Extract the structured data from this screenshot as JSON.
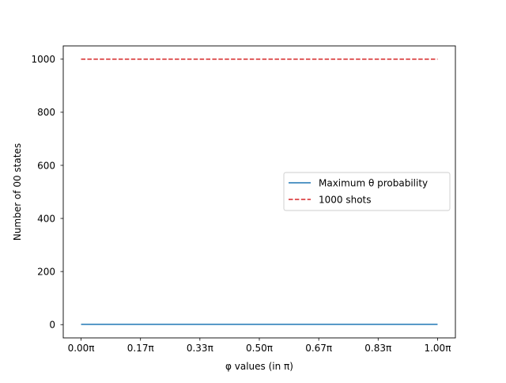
{
  "chart_data": {
    "type": "line",
    "title": "",
    "xlabel": "φ values (in π)",
    "ylabel": "Number of 00 states",
    "xlim": [
      -0.05,
      1.05
    ],
    "ylim": [
      -50,
      1050
    ],
    "x_ticks": [
      0.0,
      0.1667,
      0.3333,
      0.5,
      0.6667,
      0.8333,
      1.0
    ],
    "x_tick_labels": [
      "0.00π",
      "0.17π",
      "0.33π",
      "0.50π",
      "0.67π",
      "0.83π",
      "1.00π"
    ],
    "y_ticks": [
      0,
      200,
      400,
      600,
      800,
      1000
    ],
    "y_tick_labels": [
      "0",
      "200",
      "400",
      "600",
      "800",
      "1000"
    ],
    "grid": false,
    "legend_position": "center-right",
    "series": [
      {
        "name": "Maximum θ probability",
        "color": "#1f77b4",
        "line_style": "solid",
        "x": [
          0.0,
          1.0
        ],
        "y": [
          1,
          1
        ]
      },
      {
        "name": "1000 shots",
        "color": "#d62728",
        "line_style": "dashed",
        "x": [
          0.0,
          1.0
        ],
        "y": [
          1000,
          1000
        ]
      }
    ]
  }
}
